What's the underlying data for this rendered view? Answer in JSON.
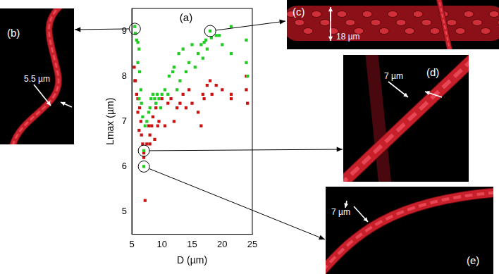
{
  "chart_data": {
    "type": "scatter",
    "label": "(a)",
    "x_label": "D (µm)",
    "y_label": "Lmax (µm)",
    "xlim": [
      5,
      25
    ],
    "xticks": [
      5,
      10,
      15,
      20,
      25
    ],
    "ylim": [
      4.5,
      9.5
    ],
    "yticks": [
      5,
      6,
      7,
      8,
      9
    ],
    "grid": false,
    "series": [
      {
        "color": "#22cc22",
        "marker": "square",
        "x": [
          5.5,
          5.6,
          5.8,
          6.0,
          6.2,
          6.0,
          6.3,
          6.5,
          6.2,
          6.6,
          6.8,
          7.0,
          7.0,
          7.2,
          7.5,
          7.8,
          8.0,
          8.2,
          8.5,
          8.8,
          9.0,
          9.2,
          9.5,
          9.8,
          10.0,
          10.5,
          11.0,
          11.2,
          11.8,
          12.0,
          12.5,
          12.8,
          13.0,
          13.5,
          14.0,
          14.5,
          15.0,
          15.5,
          16.0,
          16.5,
          16.8,
          17.0,
          17.3,
          17.5,
          18.0,
          18.2,
          19.0,
          19.5,
          20.0,
          21.5,
          21.5,
          24.0,
          24.0,
          24.2
        ],
        "values": [
          9.1,
          8.95,
          8.8,
          8.75,
          8.6,
          8.3,
          8.1,
          7.7,
          7.5,
          7.4,
          7.1,
          6.35,
          6.0,
          6.9,
          7.0,
          7.2,
          7.3,
          7.5,
          7.6,
          7.5,
          7.4,
          7.6,
          7.5,
          7.3,
          7.6,
          7.7,
          7.6,
          8.0,
          8.1,
          8.2,
          7.7,
          8.5,
          7.9,
          8.6,
          8.1,
          8.3,
          8.7,
          8.2,
          8.5,
          8.7,
          8.4,
          8.75,
          8.8,
          8.6,
          9.0,
          8.85,
          8.9,
          8.9,
          8.7,
          9.1,
          8.5,
          8.8,
          8.3,
          8.0
        ]
      },
      {
        "color": "#cc1111",
        "marker": "square",
        "x": [
          5.4,
          5.5,
          5.6,
          5.8,
          6.0,
          6.0,
          6.2,
          6.3,
          6.5,
          6.6,
          6.8,
          7.0,
          7.0,
          7.2,
          7.5,
          7.8,
          8.0,
          8.0,
          8.3,
          8.5,
          8.8,
          9.0,
          9.3,
          9.5,
          10.0,
          10.5,
          11.0,
          11.5,
          12.0,
          12.5,
          13.0,
          13.5,
          14.0,
          14.5,
          15.0,
          16.0,
          16.5,
          16.8,
          17.0,
          17.5,
          18.0,
          18.3,
          19.0,
          20.0,
          21.5,
          21.5,
          24.0,
          24.0,
          24.2
        ],
        "values": [
          8.2,
          7.9,
          7.9,
          7.6,
          7.5,
          7.2,
          6.8,
          7.3,
          7.0,
          6.7,
          6.5,
          6.3,
          6.2,
          5.25,
          6.5,
          6.9,
          6.7,
          6.5,
          6.9,
          7.1,
          6.6,
          7.3,
          6.9,
          7.0,
          7.5,
          6.9,
          7.4,
          7.5,
          7.0,
          7.3,
          7.4,
          7.6,
          7.3,
          7.7,
          7.4,
          7.2,
          6.9,
          7.6,
          7.5,
          7.8,
          7.9,
          7.6,
          7.8,
          7.7,
          7.6,
          7.5,
          8.0,
          7.7,
          7.4
        ]
      }
    ]
  },
  "panels": [
    {
      "label": "(b)",
      "scale_bar": "5.5 µm",
      "x": 5.5,
      "y": 9.05
    },
    {
      "label": "(c)",
      "scale_bar": "18 µm",
      "x": 18.0,
      "y": 9.0
    },
    {
      "label": "(d)",
      "scale_bar": "7 µm",
      "x": 7.0,
      "y": 6.35
    },
    {
      "label": "(e)",
      "scale_bar": "7 µm",
      "x": 7.0,
      "y": 6.0
    }
  ]
}
